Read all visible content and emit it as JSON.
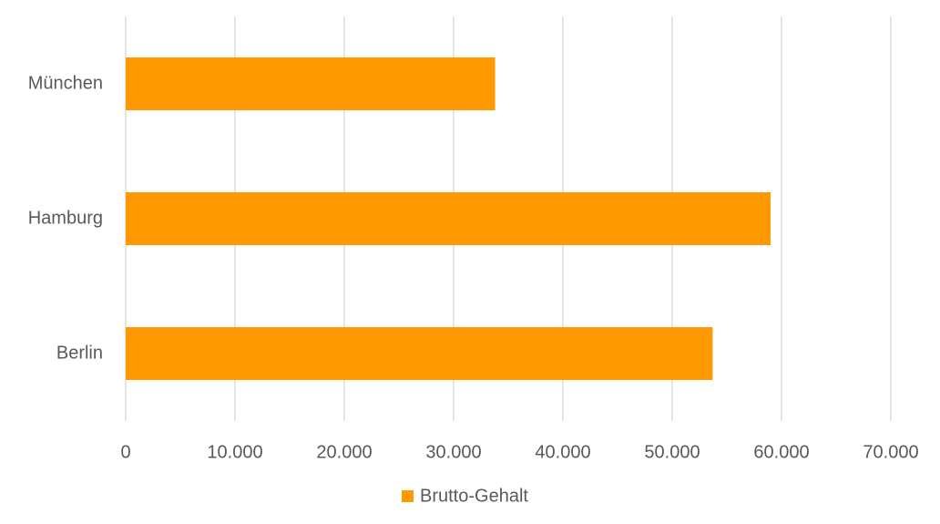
{
  "chart_data": {
    "type": "bar",
    "orientation": "horizontal",
    "categories": [
      "München",
      "Hamburg",
      "Berlin"
    ],
    "series": [
      {
        "name": "Brutto-Gehalt",
        "color": "#ff9900",
        "values": [
          33800,
          59000,
          53700
        ]
      }
    ],
    "xlim": [
      0,
      70000
    ],
    "xticks": [
      0,
      {
        "value": 10000,
        "label": "10.000"
      },
      {
        "value": 20000,
        "label": "20.000"
      },
      {
        "value": 30000,
        "label": "30.000"
      },
      {
        "value": 40000,
        "label": "40.000"
      },
      {
        "value": 50000,
        "label": "50.000"
      },
      {
        "value": 60000,
        "label": "60.000"
      },
      {
        "value": 70000,
        "label": "70.000"
      }
    ],
    "grid": true,
    "legend": "bottom"
  }
}
